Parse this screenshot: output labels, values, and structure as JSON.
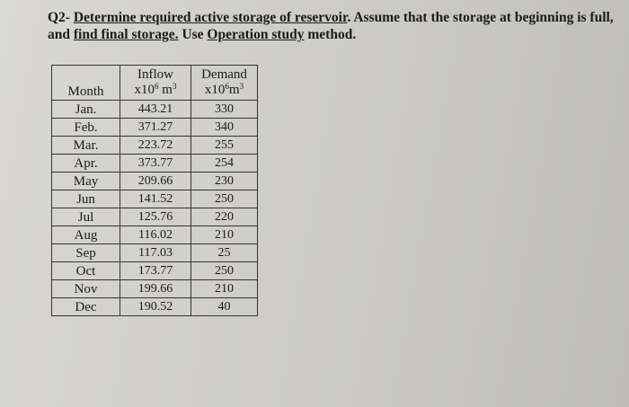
{
  "question": {
    "prefix": "Q2- ",
    "part1": "Determine required active storage of reservoir",
    "part2": ". Assume that the storage at beginning is full, and ",
    "part3": "find final storage.",
    "part4": " Use ",
    "part5": "Operation study",
    "part6": " method."
  },
  "table": {
    "headers": {
      "month": "Month",
      "inflow": "Inflow",
      "inflow_unit": "x10",
      "demand": "Demand",
      "demand_unit": "x10",
      "exp": "6",
      "m": "m",
      "cube": "3"
    },
    "rows": [
      {
        "month": "Jan.",
        "inflow": "443.21",
        "demand": "330"
      },
      {
        "month": "Feb.",
        "inflow": "371.27",
        "demand": "340"
      },
      {
        "month": "Mar.",
        "inflow": "223.72",
        "demand": "255"
      },
      {
        "month": "Apr.",
        "inflow": "373.77",
        "demand": "254"
      },
      {
        "month": "May",
        "inflow": "209.66",
        "demand": "230"
      },
      {
        "month": "Jun",
        "inflow": "141.52",
        "demand": "250"
      },
      {
        "month": "Jul",
        "inflow": "125.76",
        "demand": "220"
      },
      {
        "month": "Aug",
        "inflow": "116.02",
        "demand": "210"
      },
      {
        "month": "Sep",
        "inflow": "117.03",
        "demand": "25"
      },
      {
        "month": "Oct",
        "inflow": "173.77",
        "demand": "250"
      },
      {
        "month": "Nov",
        "inflow": "199.66",
        "demand": "210"
      },
      {
        "month": "Dec",
        "inflow": "190.52",
        "demand": "40"
      }
    ]
  }
}
